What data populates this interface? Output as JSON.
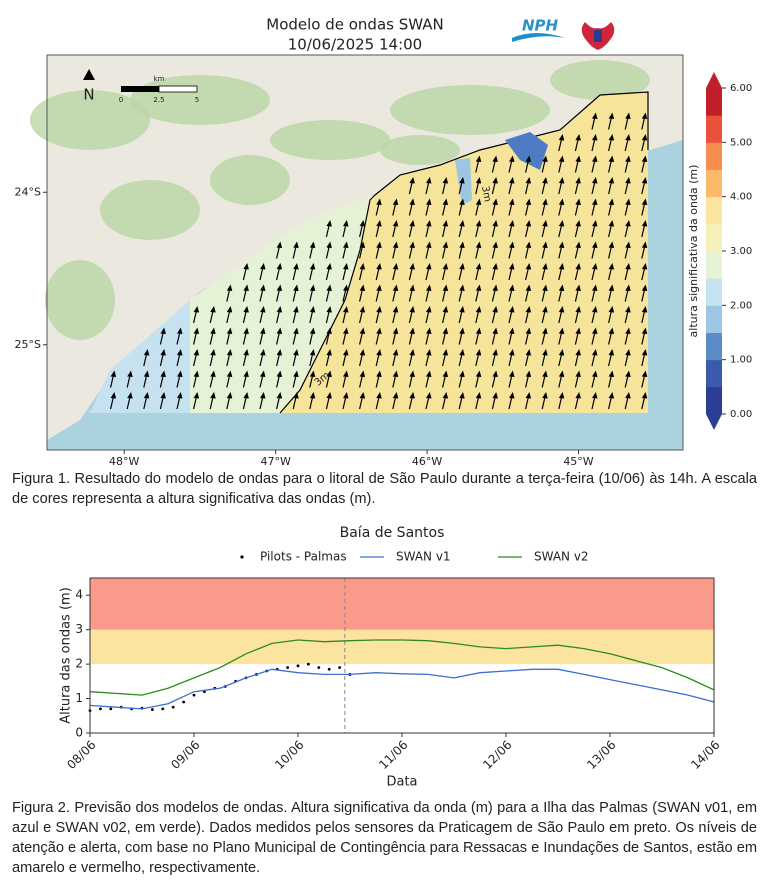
{
  "header": {
    "title": "Modelo de ondas SWAN",
    "subtitle": "10/06/2025 14:00",
    "logo": "NPH"
  },
  "map": {
    "xlim": [
      -48.51,
      -44.31
    ],
    "ylim": [
      -23.1,
      -25.69
    ],
    "xticks": [
      {
        "value": -48,
        "label": "48°W"
      },
      {
        "value": -47,
        "label": "47°W"
      },
      {
        "value": -46,
        "label": "46°W"
      },
      {
        "value": -45,
        "label": "45°W"
      }
    ],
    "yticks": [
      {
        "value": -24,
        "label": "24°S"
      },
      {
        "value": -25,
        "label": "25°S"
      }
    ],
    "north": "N",
    "scale": {
      "unit": "km",
      "ticks": [
        "0",
        "2.5",
        "5"
      ]
    },
    "contour_labels": [
      "3m",
      "3m"
    ],
    "colorbar": {
      "label": "altura significativa da onda (m)",
      "lim": [
        0,
        6
      ],
      "ticks": [
        {
          "value": 0,
          "label": "0.00"
        },
        {
          "value": 1,
          "label": "1.00"
        },
        {
          "value": 2,
          "label": "2.00"
        },
        {
          "value": 3,
          "label": "3.00"
        },
        {
          "value": 4,
          "label": "4.00"
        },
        {
          "value": 5,
          "label": "5.00"
        },
        {
          "value": 6,
          "label": "6.00"
        }
      ],
      "colors": [
        "#2c3d94",
        "#3a5aad",
        "#5b8cc8",
        "#9cc6e4",
        "#c6e3f0",
        "#e6f3d8",
        "#f7f0b8",
        "#fde5a0",
        "#fdb96a",
        "#f88d52",
        "#e9523a",
        "#c11f2b"
      ]
    }
  },
  "caption1": "Figura 1. Resultado do modelo de ondas para o litoral de São Paulo durante a terça-feira (10/06) às 14h. A escala de cores representa a altura significativa das ondas (m).",
  "chart_data": {
    "type": "line",
    "title": "Baía de Santos",
    "xlabel": "Data",
    "ylabel": "Altura das ondas (m)",
    "xlim": [
      0,
      6
    ],
    "ylim": [
      0,
      4.5
    ],
    "yticks": [
      0,
      1,
      2,
      3,
      4
    ],
    "xticks": [
      {
        "value": 0,
        "label": "08/06"
      },
      {
        "value": 1,
        "label": "09/06"
      },
      {
        "value": 2,
        "label": "10/06"
      },
      {
        "value": 3,
        "label": "11/06"
      },
      {
        "value": 4,
        "label": "12/06"
      },
      {
        "value": 5,
        "label": "13/06"
      },
      {
        "value": 6,
        "label": "14/06"
      }
    ],
    "bands": [
      {
        "from": 2,
        "to": 3,
        "color": "#fbe3a0"
      },
      {
        "from": 3,
        "to": 4.5,
        "color": "#fa9a8b"
      }
    ],
    "vline": 2.45,
    "series": [
      {
        "name": "Pilots - Palmas",
        "style": "points",
        "color": "#000000",
        "x": [
          0,
          0.1,
          0.2,
          0.3,
          0.4,
          0.5,
          0.6,
          0.7,
          0.8,
          0.9,
          1.0,
          1.1,
          1.2,
          1.3,
          1.4,
          1.5,
          1.6,
          1.7,
          1.8,
          1.9,
          2.0,
          2.1,
          2.2,
          2.3,
          2.4,
          2.5
        ],
        "values": [
          0.65,
          0.7,
          0.7,
          0.75,
          0.7,
          0.72,
          0.68,
          0.7,
          0.75,
          0.9,
          1.1,
          1.2,
          1.3,
          1.35,
          1.5,
          1.6,
          1.7,
          1.8,
          1.85,
          1.9,
          1.95,
          2.0,
          1.9,
          1.85,
          1.9,
          1.7
        ]
      },
      {
        "name": "SWAN v1",
        "style": "line",
        "color": "#3b6fd1",
        "x": [
          0,
          0.25,
          0.5,
          0.75,
          1,
          1.25,
          1.5,
          1.75,
          2,
          2.25,
          2.5,
          2.75,
          3,
          3.25,
          3.5,
          3.75,
          4,
          4.25,
          4.5,
          4.75,
          5,
          5.25,
          5.5,
          5.75,
          6
        ],
        "values": [
          0.8,
          0.75,
          0.7,
          0.85,
          1.2,
          1.3,
          1.6,
          1.85,
          1.75,
          1.7,
          1.7,
          1.75,
          1.72,
          1.7,
          1.6,
          1.75,
          1.8,
          1.85,
          1.85,
          1.7,
          1.55,
          1.4,
          1.25,
          1.1,
          0.9
        ]
      },
      {
        "name": "SWAN v2",
        "style": "line",
        "color": "#2e8b1e",
        "x": [
          0,
          0.25,
          0.5,
          0.75,
          1,
          1.25,
          1.5,
          1.75,
          2,
          2.25,
          2.5,
          2.75,
          3,
          3.25,
          3.5,
          3.75,
          4,
          4.25,
          4.5,
          4.75,
          5,
          5.25,
          5.5,
          5.75,
          6
        ],
        "values": [
          1.2,
          1.15,
          1.1,
          1.3,
          1.6,
          1.9,
          2.3,
          2.6,
          2.7,
          2.65,
          2.68,
          2.7,
          2.7,
          2.68,
          2.6,
          2.5,
          2.45,
          2.5,
          2.55,
          2.45,
          2.3,
          2.1,
          1.9,
          1.6,
          1.25
        ]
      }
    ]
  },
  "caption2": "Figura 2. Previsão dos modelos de ondas. Altura significativa da onda (m) para a Ilha das Palmas (SWAN v01, em azul e SWAN v02, em verde). Dados medidos pelos sensores da Praticagem de São Paulo em preto. Os níveis de atenção e alerta, com base no Plano Municipal de Contingência para Ressacas e Inundações de Santos, estão em amarelo e vermelho, respectivamente."
}
